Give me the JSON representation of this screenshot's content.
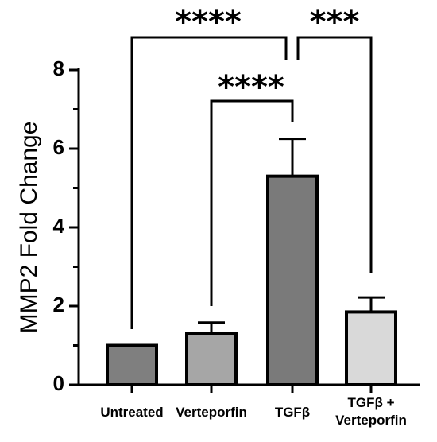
{
  "chart_data": {
    "type": "bar",
    "categories": [
      "Untreated",
      "Verteporfin",
      "TGFβ",
      "TGFβ + Verteporfin"
    ],
    "category_lines": [
      [
        "Untreated"
      ],
      [
        "Verteporfin"
      ],
      [
        "TGFβ"
      ],
      [
        "TGFβ +",
        "Verteporfin"
      ]
    ],
    "values": [
      1.0,
      1.3,
      5.3,
      1.85
    ],
    "errors": [
      0.0,
      0.28,
      0.95,
      0.37
    ],
    "bar_colors": [
      "#7f7f7f",
      "#a6a6a6",
      "#7a7a7a",
      "#d9d9d9"
    ],
    "ylabel": "MMP2 Fold Change",
    "xlabel": "",
    "title": "",
    "ylim": [
      0,
      8
    ],
    "yticks": [
      0,
      2,
      4,
      6,
      8
    ],
    "grid": false,
    "significance": [
      {
        "from": 0,
        "to": 2,
        "label": "****"
      },
      {
        "from": 1,
        "to": 2,
        "label": "****"
      },
      {
        "from": 2,
        "to": 3,
        "label": "***"
      }
    ]
  }
}
